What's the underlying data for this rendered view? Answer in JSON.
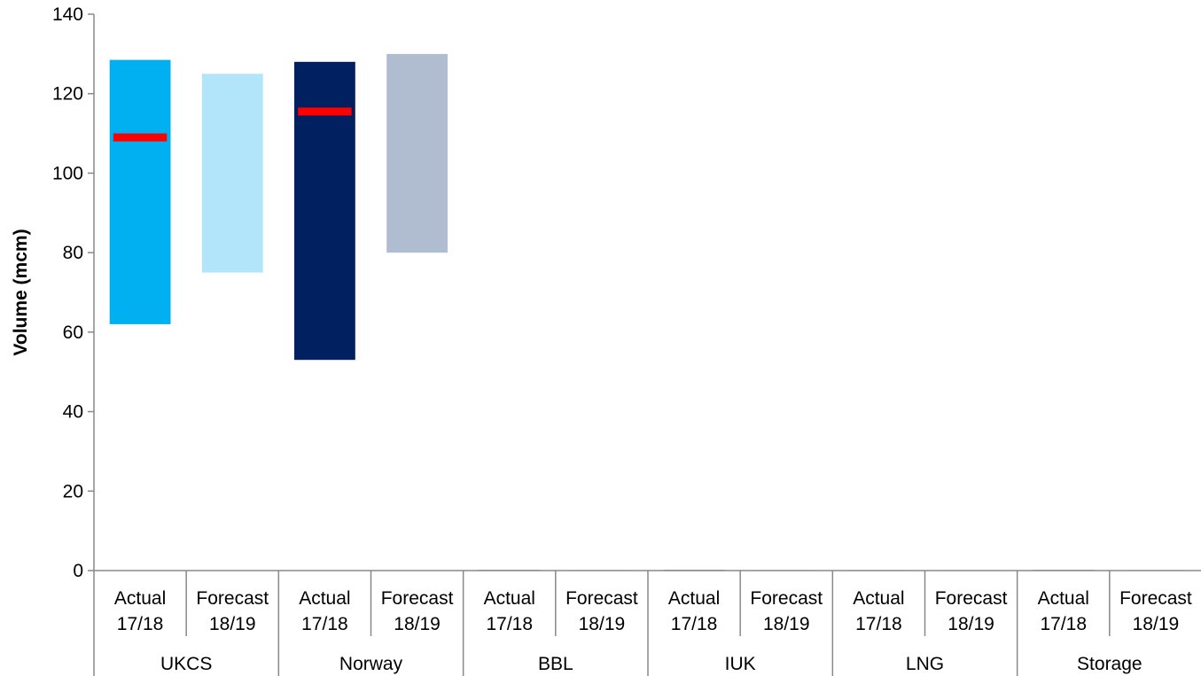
{
  "chart_data": {
    "type": "bar",
    "subtype": "floating-range",
    "ylabel": "Volume (mcm)",
    "ylim": [
      0,
      140
    ],
    "yticks": [
      0,
      20,
      40,
      60,
      80,
      100,
      120,
      140
    ],
    "grid": false,
    "legend": "none",
    "groups": [
      "UKCS",
      "Norway",
      "BBL",
      "IUK",
      "LNG",
      "Storage"
    ],
    "sublabels": [
      "Actual 17/18",
      "Forecast 18/19"
    ],
    "bars": [
      {
        "group": "UKCS",
        "sub": "Actual 17/18",
        "low": 62,
        "high": 128.5,
        "marker": 109,
        "color": "#00b0f0"
      },
      {
        "group": "UKCS",
        "sub": "Forecast 18/19",
        "low": 75,
        "high": 125,
        "marker": null,
        "color": "#b3e5fa"
      },
      {
        "group": "Norway",
        "sub": "Actual 17/18",
        "low": 53,
        "high": 128,
        "marker": 115.5,
        "color": "#002060"
      },
      {
        "group": "Norway",
        "sub": "Forecast 18/19",
        "low": 80,
        "high": 130,
        "marker": null,
        "color": "#b0bccf"
      },
      {
        "group": "BBL",
        "sub": "Actual 17/18",
        "low": 0,
        "high": 0.2,
        "marker": null,
        "color": "#9bbb59"
      },
      {
        "group": "BBL",
        "sub": "Forecast 18/19",
        "low": 0,
        "high": 0.1,
        "marker": null,
        "color": "#c3d69b"
      },
      {
        "group": "IUK",
        "sub": "Actual 17/18",
        "low": 0,
        "high": 0.2,
        "marker": null,
        "color": "#b070c0"
      },
      {
        "group": "IUK",
        "sub": "Forecast 18/19",
        "low": 0,
        "high": 0.1,
        "marker": null,
        "color": "#d9b8e0"
      },
      {
        "group": "LNG",
        "sub": "Actual 17/18",
        "low": 0,
        "high": 0.1,
        "marker": null,
        "color": "#a0a0a0"
      },
      {
        "group": "LNG",
        "sub": "Forecast 18/19",
        "low": 0,
        "high": 0.1,
        "marker": null,
        "color": "#d0d0d0"
      },
      {
        "group": "Storage",
        "sub": "Actual 17/18",
        "low": 0,
        "high": 0.2,
        "marker": null,
        "color": "#9bbb59"
      },
      {
        "group": "Storage",
        "sub": "Forecast 18/19",
        "low": 0,
        "high": 0.1,
        "marker": null,
        "color": "#c3d69b"
      }
    ],
    "marker_color": "#ff0000"
  }
}
